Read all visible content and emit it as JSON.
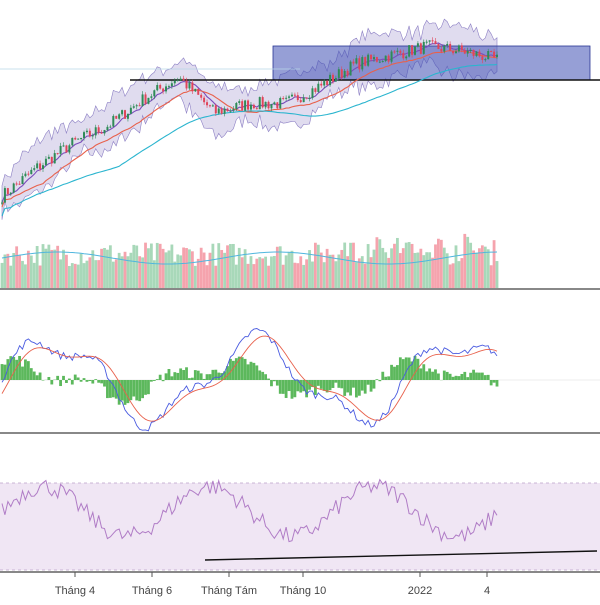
{
  "chart_data": {
    "type": "candlestick",
    "x_axis": {
      "tick_labels": [
        "Tháng 4",
        "Tháng 6",
        "Tháng Tám",
        "Tháng 10",
        "2022",
        "4"
      ]
    },
    "price": {
      "ma_fast_color": "#7b4dbb",
      "ma_slow_color": "#e8614c",
      "ma_long_color": "#2bb5cf",
      "band_fill": "#a59ad1",
      "box_fill": "#3f51b5",
      "up_color": "#2e8b57",
      "down_color": "#e0455a",
      "horizontal_line": true
    },
    "volume": {
      "up_color": "#a8d8b9",
      "down_color": "#f5a3ad",
      "ma_color": "#4fb6de"
    },
    "macd": {
      "macd_color": "#4a5be0",
      "signal_color": "#e8614c",
      "hist_color": "#5cb85c"
    },
    "rsi": {
      "line_color": "#b07cc6",
      "band_fill": "#eadcf0",
      "trendline": true
    },
    "series": [
      {
        "values": [
          0.2,
          0.33,
          0.44,
          0.52,
          0.64,
          0.74,
          0.58,
          0.62,
          0.62,
          0.7,
          0.8,
          0.84,
          0.88,
          0.86,
          0.82
        ]
      }
    ]
  }
}
